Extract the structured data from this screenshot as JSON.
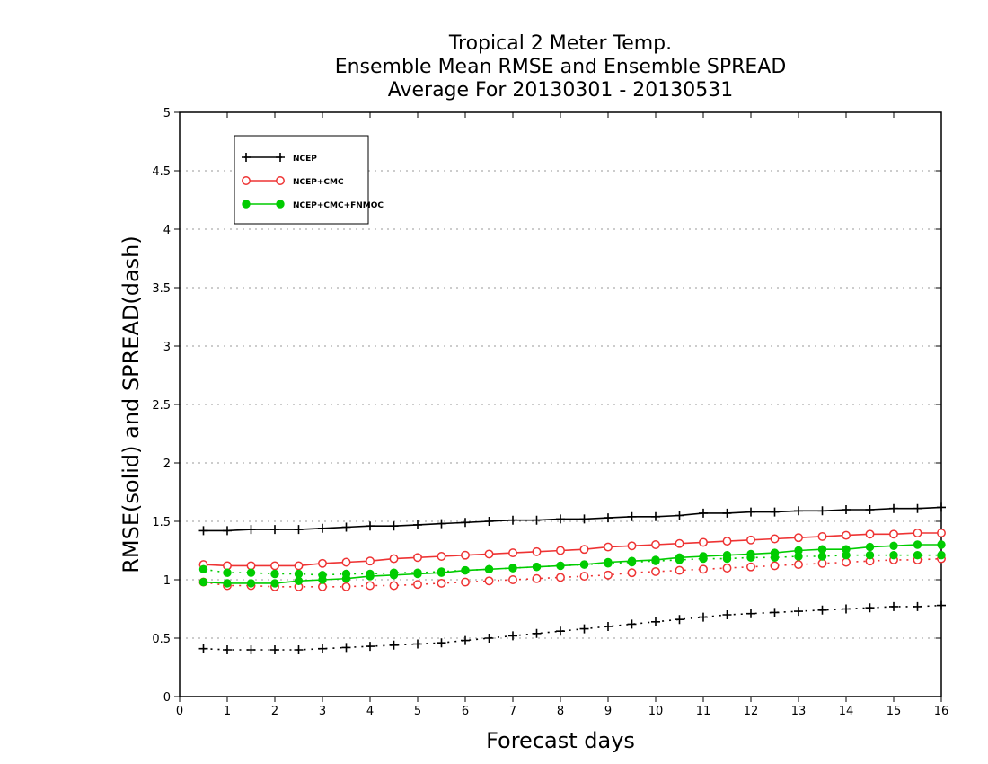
{
  "chart_data": {
    "type": "line",
    "title": [
      "Tropical 2 Meter Temp.",
      "Ensemble Mean RMSE and Ensemble SPREAD",
      "Average For 20130301 - 20130531"
    ],
    "xlabel": "Forecast days",
    "ylabel": "RMSE(solid) and SPREAD(dash)",
    "xlim": [
      0,
      16
    ],
    "ylim": [
      0,
      5
    ],
    "xticks": [
      "0",
      "1",
      "2",
      "3",
      "4",
      "5",
      "6",
      "7",
      "8",
      "9",
      "10",
      "11",
      "12",
      "13",
      "14",
      "15",
      "16"
    ],
    "yticks": [
      "0",
      "0.5",
      "1",
      "1.5",
      "2",
      "2.5",
      "3",
      "3.5",
      "4",
      "4.5",
      "5"
    ],
    "grid": "horizontal dotted",
    "legend_position": "top-left",
    "x": [
      0.5,
      1,
      1.5,
      2,
      2.5,
      3,
      3.5,
      4,
      4.5,
      5,
      5.5,
      6,
      6.5,
      7,
      7.5,
      8,
      8.5,
      9,
      9.5,
      10,
      10.5,
      11,
      11.5,
      12,
      12.5,
      13,
      13.5,
      14,
      14.5,
      15,
      15.5,
      16
    ],
    "series": [
      {
        "name": "NCEP",
        "stat": "RMSE",
        "style": "solid",
        "marker": "plus",
        "color": "#000000",
        "values": [
          1.42,
          1.42,
          1.43,
          1.43,
          1.43,
          1.44,
          1.45,
          1.46,
          1.46,
          1.47,
          1.48,
          1.49,
          1.5,
          1.51,
          1.51,
          1.52,
          1.52,
          1.53,
          1.54,
          1.54,
          1.55,
          1.57,
          1.57,
          1.58,
          1.58,
          1.59,
          1.59,
          1.6,
          1.6,
          1.61,
          1.61,
          1.62
        ]
      },
      {
        "name": "NCEP",
        "stat": "SPREAD",
        "style": "dash",
        "marker": "plus",
        "color": "#000000",
        "values": [
          0.41,
          0.4,
          0.4,
          0.4,
          0.4,
          0.41,
          0.42,
          0.43,
          0.44,
          0.45,
          0.46,
          0.48,
          0.5,
          0.52,
          0.54,
          0.56,
          0.58,
          0.6,
          0.62,
          0.64,
          0.66,
          0.68,
          0.7,
          0.71,
          0.72,
          0.73,
          0.74,
          0.75,
          0.76,
          0.77,
          0.77,
          0.78
        ]
      },
      {
        "name": "NCEP+CMC",
        "stat": "RMSE",
        "style": "solid",
        "marker": "open-circle",
        "color": "#ee3333",
        "values": [
          1.13,
          1.12,
          1.12,
          1.12,
          1.12,
          1.14,
          1.15,
          1.16,
          1.18,
          1.19,
          1.2,
          1.21,
          1.22,
          1.23,
          1.24,
          1.25,
          1.26,
          1.28,
          1.29,
          1.3,
          1.31,
          1.32,
          1.33,
          1.34,
          1.35,
          1.36,
          1.37,
          1.38,
          1.39,
          1.39,
          1.4,
          1.4
        ]
      },
      {
        "name": "NCEP+CMC",
        "stat": "SPREAD",
        "style": "dash",
        "marker": "open-circle",
        "color": "#ee3333",
        "values": [
          0.98,
          0.95,
          0.95,
          0.94,
          0.94,
          0.94,
          0.94,
          0.95,
          0.95,
          0.96,
          0.97,
          0.98,
          0.99,
          1.0,
          1.01,
          1.02,
          1.03,
          1.04,
          1.06,
          1.07,
          1.08,
          1.09,
          1.1,
          1.11,
          1.12,
          1.13,
          1.14,
          1.15,
          1.16,
          1.17,
          1.17,
          1.18
        ]
      },
      {
        "name": "NCEP+CMC+FNMOC",
        "stat": "RMSE",
        "style": "solid",
        "marker": "filled-circle",
        "color": "#00cc00",
        "values": [
          0.98,
          0.97,
          0.97,
          0.97,
          0.99,
          1.0,
          1.01,
          1.03,
          1.04,
          1.05,
          1.06,
          1.08,
          1.09,
          1.1,
          1.11,
          1.12,
          1.13,
          1.15,
          1.16,
          1.17,
          1.19,
          1.2,
          1.21,
          1.22,
          1.23,
          1.25,
          1.26,
          1.26,
          1.28,
          1.29,
          1.3,
          1.3
        ]
      },
      {
        "name": "NCEP+CMC+FNMOC",
        "stat": "SPREAD",
        "style": "dash",
        "marker": "filled-circle",
        "color": "#00cc00",
        "values": [
          1.09,
          1.06,
          1.06,
          1.05,
          1.05,
          1.04,
          1.05,
          1.05,
          1.06,
          1.06,
          1.07,
          1.08,
          1.09,
          1.1,
          1.11,
          1.12,
          1.13,
          1.14,
          1.15,
          1.16,
          1.17,
          1.18,
          1.18,
          1.19,
          1.19,
          1.2,
          1.2,
          1.21,
          1.21,
          1.21,
          1.21,
          1.21
        ]
      }
    ],
    "legend": [
      {
        "label": "NCEP",
        "marker": "plus",
        "color": "#000000"
      },
      {
        "label": "NCEP+CMC",
        "marker": "open-circle",
        "color": "#ee3333"
      },
      {
        "label": "NCEP+CMC+FNMOC",
        "marker": "filled-circle",
        "color": "#00cc00"
      }
    ]
  }
}
